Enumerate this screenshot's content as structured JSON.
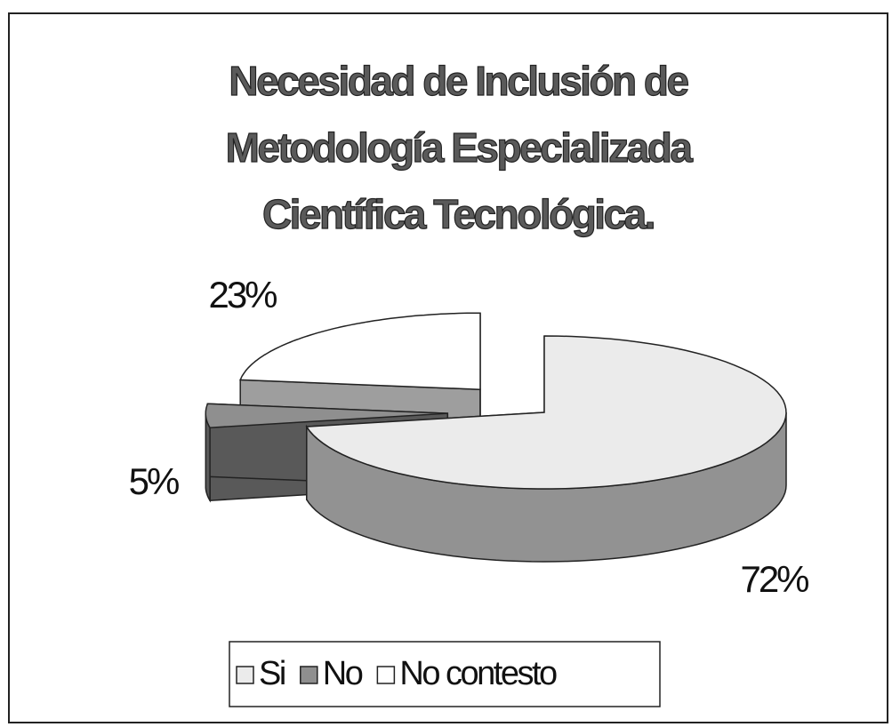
{
  "chart_data": {
    "type": "pie3d",
    "title": [
      "Necesidad de Inclusión de",
      "Metodología Especializada",
      "Científica Tecnológica."
    ],
    "categories": [
      "Si",
      "No",
      "No contesto"
    ],
    "values": [
      72,
      5,
      23
    ],
    "value_labels": [
      "72%",
      "5%",
      "23%"
    ],
    "colors": [
      "#ebebeb",
      "#8f8f8f",
      "#ffffff"
    ],
    "legend": "bottom"
  }
}
